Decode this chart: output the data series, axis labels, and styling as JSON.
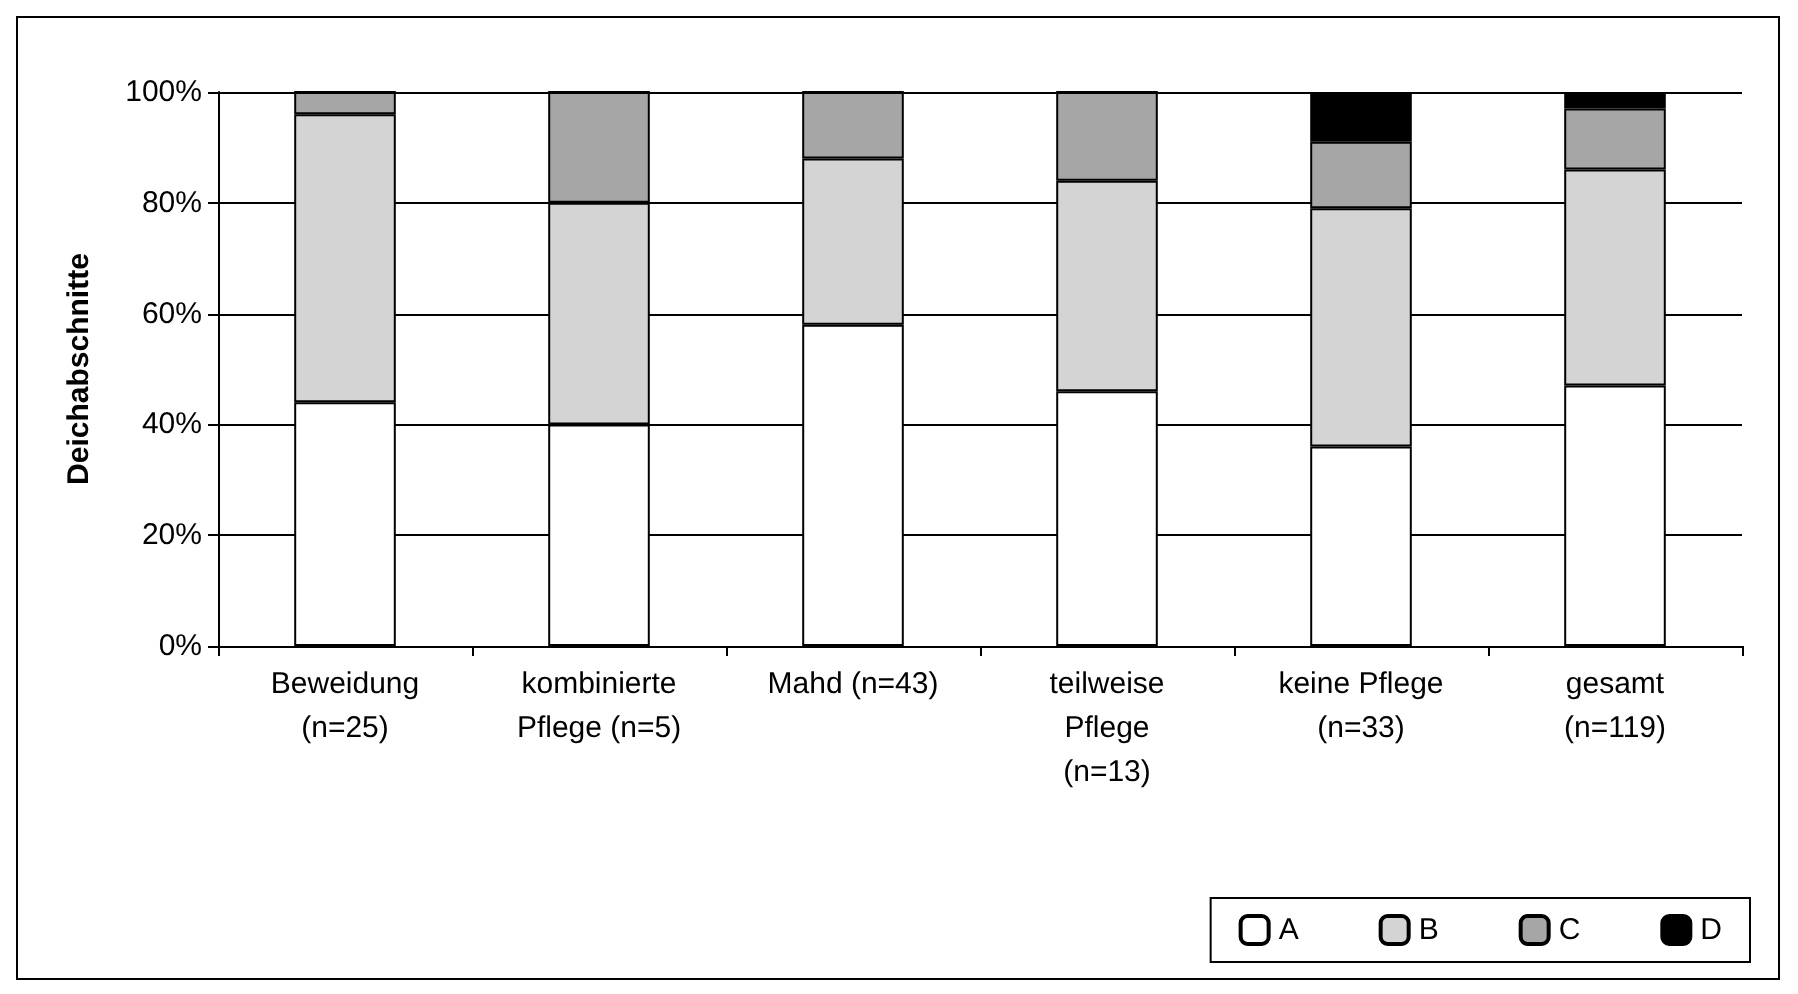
{
  "chart_data": {
    "type": "bar",
    "stacked": true,
    "ylabel": "Deichabschnitte",
    "categories": [
      "Beweidung\n(n=25)",
      "kombinierte\nPflege (n=5)",
      "Mahd (n=43)",
      "teilweise\nPflege\n(n=13)",
      "keine Pflege\n(n=33)",
      "gesamt\n(n=119)"
    ],
    "series": [
      {
        "name": "A",
        "color": "#ffffff",
        "values": [
          44,
          40,
          58,
          46,
          36,
          47
        ]
      },
      {
        "name": "B",
        "color": "#d4d4d4",
        "values": [
          52,
          40,
          30,
          38,
          43,
          39
        ]
      },
      {
        "name": "C",
        "color": "#a6a6a6",
        "values": [
          4,
          20,
          12,
          16,
          12,
          11
        ]
      },
      {
        "name": "D",
        "color": "#000000",
        "values": [
          0,
          0,
          0,
          0,
          9,
          3
        ]
      }
    ],
    "ylim": [
      0,
      100
    ],
    "yticks": [
      {
        "value": 0,
        "label": "0%"
      },
      {
        "value": 20,
        "label": "20%"
      },
      {
        "value": 40,
        "label": "40%"
      },
      {
        "value": 60,
        "label": "60%"
      },
      {
        "value": 80,
        "label": "80%"
      },
      {
        "value": 100,
        "label": "100%"
      }
    ],
    "grid": "y",
    "legend": "bottom right"
  }
}
